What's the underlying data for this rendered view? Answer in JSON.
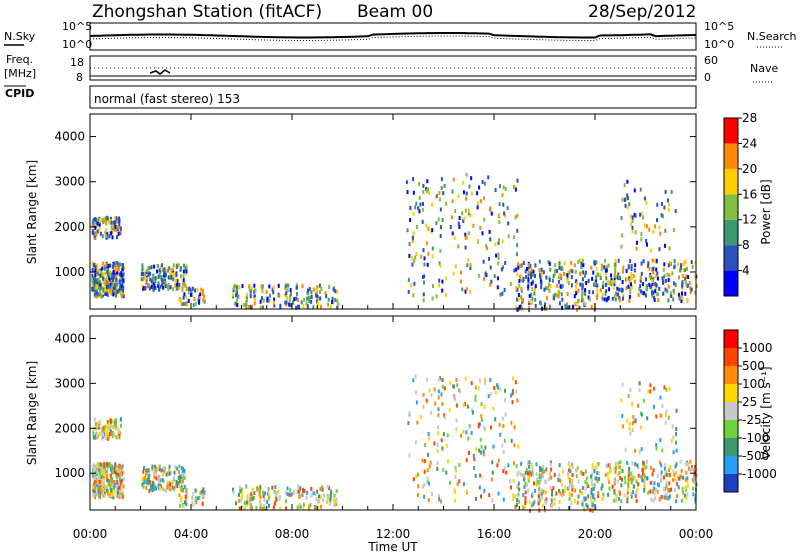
{
  "header": {
    "title": "Zhongshan Station (fitACF)",
    "beam": "Beam 00",
    "date": "28/Sep/2012"
  },
  "strip": {
    "nsky_label": "N.Sky",
    "nsearch_label": "N.Search",
    "freq_label_1": "Freq.",
    "freq_label_2": "[MHz]",
    "nave_label": "Nave",
    "cpid_label": "CPID",
    "cpid_value": "normal (fast stereo) 153",
    "noise_ticks_left": [
      "10^5",
      "10^0"
    ],
    "noise_ticks_right": [
      "10^5",
      "10^0"
    ],
    "freq_ticks": [
      "18",
      "8"
    ],
    "nave_ticks": [
      "60",
      "0"
    ]
  },
  "chart_data": [
    {
      "type": "heatmap",
      "ylabel": "Slant Range [km]",
      "xlabel": "",
      "xlim": [
        0,
        24
      ],
      "ylim": [
        180,
        4500
      ],
      "yticks": [
        "1000",
        "2000",
        "3000",
        "4000"
      ],
      "colorbar": {
        "label": "Power [dB]",
        "ticks": [
          "4",
          "8",
          "12",
          "16",
          "20",
          "24",
          "28"
        ],
        "colors": [
          "#0000ff",
          "#2a52be",
          "#3d9970",
          "#7fbf3f",
          "#ffcc00",
          "#ff8800",
          "#ff0000"
        ]
      }
    },
    {
      "type": "heatmap",
      "ylabel": "Slant Range [km]",
      "xlabel": "Time UT",
      "xlim": [
        0,
        24
      ],
      "ylim": [
        180,
        4500
      ],
      "yticks": [
        "1000",
        "2000",
        "3000",
        "4000"
      ],
      "xticks": [
        "00:00",
        "04:00",
        "08:00",
        "12:00",
        "16:00",
        "20:00",
        "00:00"
      ],
      "colorbar": {
        "label": "Velocity [m s⁻¹]",
        "ticks": [
          "1000",
          "500",
          "100",
          "25",
          "-25",
          "-100",
          "-500",
          "-1000"
        ],
        "colors": [
          "#1f3fbf",
          "#2a9df4",
          "#3d9970",
          "#6fd13f",
          "#c8c8c8",
          "#ffd700",
          "#ff8c00",
          "#ff4500",
          "#ff0000"
        ]
      }
    }
  ]
}
